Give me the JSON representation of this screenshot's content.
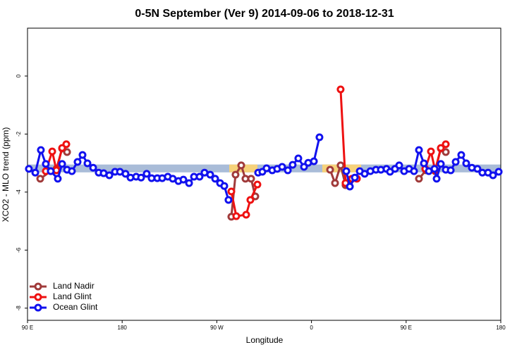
{
  "chart_data": {
    "type": "line",
    "title": "0-5N September (Ver 9)   2014-09-06 to 2018-12-31",
    "xlabel": "Longitude",
    "ylabel": "XCO2 - MLO trend (ppm)",
    "xlim": [
      90,
      540
    ],
    "ylim": [
      -8.42,
      1.65
    ],
    "xticks": [
      {
        "value": 90,
        "label": "90 E"
      },
      180,
      {
        "value": 270,
        "label": "90 W"
      },
      {
        "value": 360,
        "label": "0"
      },
      {
        "value": 450,
        "label": "90 E"
      },
      {
        "value": 540,
        "label": "180"
      }
    ],
    "yticks": [
      -8,
      -6,
      -4,
      -2,
      0
    ],
    "grid": false,
    "legend": "bottom-left",
    "band": {
      "ylim": [
        -3.32,
        -3.05
      ],
      "color": "#a9bcd8",
      "land_color": "#f6d27a",
      "land": [
        [
          281.8,
          308.6
        ],
        [
          370.3,
          407.2
        ]
      ]
    },
    "series": [
      {
        "name": "Land Nadir",
        "color": "#a03a3a",
        "x": [
          102.1,
          112.1,
          117.5,
          122.9,
          127.6,
          null,
          283.8,
          287.8,
          293.2,
          297.2,
          302.6,
          306.6,
          null,
          377.7,
          382.4,
          387.7,
          392.4,
          397.1,
          null,
          462.2,
          468.9,
          477.6,
          483.0,
          487.7
        ],
        "values": [
          -3.54,
          -3.28,
          -3.2,
          -2.5,
          -2.62,
          null,
          -4.85,
          -3.4,
          -3.08,
          -3.54,
          -3.54,
          -4.15,
          null,
          -3.23,
          -3.69,
          -3.08,
          -3.76,
          -3.57,
          null,
          -3.54,
          -3.25,
          -3.28,
          -2.5,
          -2.62
        ]
      },
      {
        "name": "Land Glint",
        "color": "#ee1111",
        "x": [
          107.4,
          113.5,
          117.5,
          122.9,
          126.9,
          null,
          283.8,
          288.5,
          297.9,
          301.9,
          308.6,
          null,
          387.7,
          392.4,
          398.5,
          403.2,
          null,
          468.2,
          473.6,
          477.6,
          483.0,
          487.7
        ],
        "values": [
          -3.28,
          -2.6,
          -3.25,
          -2.48,
          -2.35,
          null,
          -3.98,
          -4.83,
          -4.78,
          -4.27,
          -3.74,
          null,
          -0.46,
          -3.69,
          -3.54,
          -3.54,
          null,
          -3.2,
          -2.6,
          -3.25,
          -2.48,
          -2.35
        ]
      },
      {
        "name": "Ocean Glint",
        "color": "#1111ee",
        "x": [
          91.3,
          97.4,
          102.7,
          107.4,
          112.1,
          118.8,
          122.9,
          127.6,
          132.2,
          137.6,
          142.3,
          147.0,
          152.4,
          157.7,
          162.4,
          167.8,
          173.2,
          177.9,
          183.2,
          187.9,
          193.3,
          198.0,
          203.3,
          208.0,
          213.4,
          218.1,
          223.4,
          228.1,
          233.5,
          238.2,
          243.6,
          248.3,
          253.6,
          258.3,
          263.7,
          268.4,
          273.1,
          277.1,
          281.1,
          null,
          309.3,
          313.3,
          317.3,
          322.7,
          327.4,
          332.1,
          337.5,
          342.1,
          347.5,
          352.9,
          356.9,
          362.3,
          367.6,
          null,
          393.1,
          396.5,
          401.2,
          405.9,
          410.6,
          416.0,
          421.3,
          426.0,
          431.3,
          434.7,
          439.4,
          443.4,
          448.1,
          452.8,
          457.5,
          462.2,
          466.9,
          471.6,
          477.0,
          479.0,
          483.0,
          487.7,
          492.4,
          497.1,
          502.4,
          507.1,
          512.5,
          517.8,
          522.5,
          527.9,
          532.6,
          538.0
        ],
        "values": [
          -3.2,
          -3.33,
          -2.55,
          -3.03,
          -3.28,
          -3.54,
          -3.03,
          -3.23,
          -3.28,
          -2.96,
          -2.72,
          -3.01,
          -3.16,
          -3.33,
          -3.35,
          -3.42,
          -3.3,
          -3.3,
          -3.37,
          -3.5,
          -3.47,
          -3.5,
          -3.37,
          -3.52,
          -3.52,
          -3.52,
          -3.47,
          -3.54,
          -3.62,
          -3.57,
          -3.69,
          -3.47,
          -3.47,
          -3.33,
          -3.4,
          -3.54,
          -3.69,
          -3.79,
          -4.27,
          null,
          -3.33,
          -3.3,
          -3.18,
          -3.25,
          -3.2,
          -3.13,
          -3.25,
          -3.06,
          -2.84,
          -3.13,
          -2.99,
          -2.94,
          -2.11,
          null,
          -3.28,
          -3.81,
          -3.5,
          -3.28,
          -3.37,
          -3.28,
          -3.23,
          -3.23,
          -3.2,
          -3.3,
          -3.2,
          -3.08,
          -3.28,
          -3.2,
          -3.28,
          -2.55,
          -3.01,
          -3.28,
          -3.2,
          -3.54,
          -3.03,
          -3.23,
          -3.25,
          -2.96,
          -2.72,
          -3.01,
          -3.16,
          -3.2,
          -3.33,
          -3.33,
          -3.42,
          -3.3
        ]
      }
    ]
  }
}
